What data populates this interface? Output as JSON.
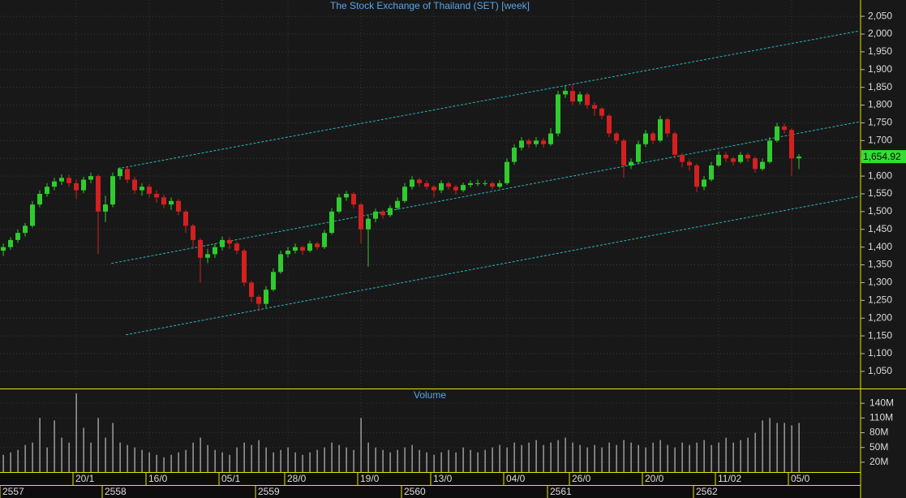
{
  "chart_data": [
    {
      "type": "candlestick",
      "title": "The Stock Exchange of Thailand (SET) [week]",
      "categories": [
        null,
        null,
        null,
        null,
        null,
        null,
        null,
        null,
        null,
        null,
        "20/1",
        null,
        null,
        null,
        null,
        null,
        null,
        null,
        null,
        null,
        "16/0",
        null,
        null,
        null,
        null,
        null,
        null,
        null,
        null,
        null,
        "05/1",
        null,
        null,
        null,
        null,
        null,
        null,
        null,
        null,
        "28/0",
        null,
        null,
        null,
        null,
        null,
        null,
        null,
        null,
        null,
        "19/0",
        null,
        null,
        null,
        null,
        null,
        null,
        null,
        null,
        null,
        "13/0",
        null,
        null,
        null,
        null,
        null,
        null,
        null,
        null,
        null,
        "04/0",
        null,
        null,
        null,
        null,
        null,
        null,
        null,
        null,
        "26/0",
        null,
        null,
        null,
        null,
        null,
        null,
        null,
        null,
        null,
        "20/0",
        null,
        null,
        null,
        null,
        null,
        null,
        null,
        null,
        null,
        "11/02",
        null,
        null,
        null,
        null,
        null,
        null,
        null,
        null,
        null,
        "05/0",
        null
      ],
      "years": [
        "2557",
        null,
        null,
        null,
        null,
        null,
        null,
        null,
        null,
        null,
        null,
        null,
        null,
        null,
        "2558",
        null,
        null,
        null,
        null,
        null,
        null,
        null,
        null,
        null,
        null,
        null,
        null,
        null,
        null,
        null,
        null,
        null,
        null,
        null,
        null,
        "2559",
        null,
        null,
        null,
        null,
        null,
        null,
        null,
        null,
        null,
        null,
        null,
        null,
        null,
        null,
        null,
        null,
        null,
        null,
        null,
        "2560",
        null,
        null,
        null,
        null,
        null,
        null,
        null,
        null,
        null,
        null,
        null,
        null,
        null,
        null,
        null,
        null,
        null,
        null,
        null,
        "2561",
        null,
        null,
        null,
        null,
        null,
        null,
        null,
        null,
        null,
        null,
        null,
        null,
        null,
        null,
        null,
        null,
        null,
        null,
        null,
        "2562",
        null,
        null,
        null,
        null,
        null,
        null,
        null,
        null,
        null,
        null,
        null,
        null,
        null,
        null
      ],
      "open": [
        1390,
        1400,
        1420,
        1440,
        1460,
        1520,
        1550,
        1570,
        1585,
        1595,
        1580,
        1560,
        1590,
        1600,
        1500,
        1520,
        1600,
        1620,
        1590,
        1560,
        1570,
        1550,
        1540,
        1520,
        1530,
        1500,
        1460,
        1420,
        1370,
        1380,
        1400,
        1420,
        1410,
        1390,
        1300,
        1260,
        1240,
        1280,
        1330,
        1380,
        1390,
        1400,
        1390,
        1410,
        1400,
        1440,
        1500,
        1540,
        1550,
        1520,
        1450,
        1480,
        1500,
        1490,
        1510,
        1530,
        1570,
        1590,
        1580,
        1570,
        1560,
        1580,
        1570,
        1560,
        1575,
        1580,
        1580,
        1580,
        1570,
        1580,
        1640,
        1680,
        1700,
        1690,
        1700,
        1690,
        1720,
        1830,
        1840,
        1810,
        1830,
        1800,
        1790,
        1770,
        1720,
        1700,
        1630,
        1640,
        1690,
        1720,
        1700,
        1760,
        1720,
        1660,
        1640,
        1630,
        1570,
        1590,
        1630,
        1660,
        1650,
        1640,
        1660,
        1650,
        1620,
        1640,
        1700,
        1740,
        1730,
        1650
      ],
      "high": [
        1410,
        1428,
        1450,
        1468,
        1530,
        1560,
        1580,
        1595,
        1605,
        1604,
        1590,
        1598,
        1610,
        1605,
        1545,
        1610,
        1625,
        1625,
        1598,
        1580,
        1578,
        1560,
        1548,
        1540,
        1535,
        1505,
        1465,
        1425,
        1395,
        1410,
        1430,
        1428,
        1415,
        1395,
        1305,
        1265,
        1290,
        1340,
        1390,
        1400,
        1410,
        1405,
        1418,
        1415,
        1448,
        1510,
        1550,
        1558,
        1555,
        1525,
        1490,
        1508,
        1505,
        1518,
        1540,
        1580,
        1600,
        1595,
        1588,
        1575,
        1588,
        1585,
        1575,
        1582,
        1588,
        1590,
        1588,
        1585,
        1588,
        1650,
        1690,
        1710,
        1705,
        1710,
        1708,
        1735,
        1840,
        1855,
        1860,
        1838,
        1835,
        1808,
        1795,
        1775,
        1725,
        1705,
        1650,
        1700,
        1730,
        1725,
        1770,
        1765,
        1725,
        1665,
        1648,
        1635,
        1600,
        1640,
        1670,
        1668,
        1655,
        1668,
        1665,
        1655,
        1650,
        1710,
        1750,
        1748,
        1735,
        1662
      ],
      "low": [
        1375,
        1392,
        1412,
        1430,
        1455,
        1512,
        1542,
        1560,
        1575,
        1570,
        1535,
        1552,
        1580,
        1380,
        1470,
        1512,
        1590,
        1580,
        1550,
        1545,
        1540,
        1525,
        1510,
        1505,
        1490,
        1440,
        1400,
        1300,
        1355,
        1370,
        1390,
        1395,
        1380,
        1290,
        1245,
        1220,
        1230,
        1275,
        1325,
        1370,
        1382,
        1378,
        1385,
        1392,
        1395,
        1435,
        1495,
        1530,
        1510,
        1410,
        1345,
        1470,
        1480,
        1485,
        1505,
        1525,
        1562,
        1570,
        1562,
        1540,
        1552,
        1562,
        1548,
        1555,
        1568,
        1572,
        1572,
        1562,
        1565,
        1575,
        1632,
        1672,
        1680,
        1682,
        1680,
        1685,
        1712,
        1820,
        1800,
        1802,
        1790,
        1770,
        1760,
        1710,
        1690,
        1595,
        1620,
        1635,
        1682,
        1690,
        1695,
        1710,
        1650,
        1625,
        1615,
        1555,
        1560,
        1585,
        1625,
        1640,
        1630,
        1635,
        1640,
        1610,
        1615,
        1635,
        1695,
        1720,
        1600,
        1620
      ],
      "close": [
        1400,
        1420,
        1440,
        1460,
        1520,
        1550,
        1570,
        1585,
        1595,
        1580,
        1560,
        1590,
        1600,
        1500,
        1520,
        1600,
        1620,
        1590,
        1560,
        1570,
        1550,
        1540,
        1520,
        1530,
        1500,
        1460,
        1420,
        1370,
        1380,
        1400,
        1420,
        1410,
        1390,
        1300,
        1260,
        1240,
        1280,
        1330,
        1380,
        1390,
        1400,
        1390,
        1410,
        1400,
        1440,
        1500,
        1540,
        1550,
        1520,
        1450,
        1480,
        1500,
        1490,
        1510,
        1530,
        1570,
        1590,
        1580,
        1570,
        1560,
        1580,
        1570,
        1560,
        1575,
        1580,
        1580,
        1580,
        1570,
        1580,
        1640,
        1680,
        1700,
        1690,
        1700,
        1690,
        1720,
        1830,
        1840,
        1810,
        1830,
        1800,
        1790,
        1770,
        1720,
        1700,
        1630,
        1640,
        1690,
        1720,
        1700,
        1760,
        1720,
        1660,
        1640,
        1630,
        1570,
        1590,
        1630,
        1660,
        1650,
        1640,
        1660,
        1650,
        1620,
        1640,
        1700,
        1740,
        1730,
        1650,
        1654.92
      ],
      "up_color": "#2ecc2e",
      "down_color": "#d42020",
      "ylim": [
        1004,
        2096
      ],
      "yticks": [
        {
          "value": 1050,
          "label": "1,050"
        },
        {
          "value": 1100,
          "label": "1,100"
        },
        {
          "value": 1150,
          "label": "1,150"
        },
        {
          "value": 1200,
          "label": "1,200"
        },
        {
          "value": 1250,
          "label": "1,250"
        },
        {
          "value": 1300,
          "label": "1,300"
        },
        {
          "value": 1350,
          "label": "1,350"
        },
        {
          "value": 1400,
          "label": "1,400"
        },
        {
          "value": 1450,
          "label": "1,450"
        },
        {
          "value": 1500,
          "label": "1,500"
        },
        {
          "value": 1550,
          "label": "1,550"
        },
        {
          "value": 1600,
          "label": "1,600"
        },
        {
          "value": 1650,
          "label": "1,650"
        },
        {
          "value": 1700,
          "label": "1,700"
        },
        {
          "value": 1750,
          "label": "1,750"
        },
        {
          "value": 1800,
          "label": "1,800"
        },
        {
          "value": 1850,
          "label": "1,850"
        },
        {
          "value": 1900,
          "label": "1,900"
        },
        {
          "value": 1950,
          "label": "1,950"
        },
        {
          "value": 2000,
          "label": "2,000"
        },
        {
          "value": 2050,
          "label": "2,050"
        }
      ],
      "grid": true,
      "trendlines": [
        {
          "x": [
            15.7,
            117.3
          ],
          "values": [
            1621,
            2009
          ],
          "color": "#2bb5b5"
        },
        {
          "x": [
            14.8,
            117.3
          ],
          "values": [
            1354,
            1753
          ],
          "color": "#2bb5b5"
        },
        {
          "x": [
            16.8,
            117.3
          ],
          "values": [
            1153,
            1543
          ],
          "color": "#2bb5b5"
        }
      ],
      "last_price": {
        "value": 1654.92,
        "label": "1,654.92"
      },
      "last_color": "#33dd33"
    },
    {
      "type": "bar",
      "title": "Volume",
      "color": "#bdbdbd",
      "values": [
        35,
        40,
        45,
        55,
        60,
        110,
        50,
        105,
        70,
        60,
        160,
        90,
        60,
        110,
        70,
        100,
        60,
        55,
        50,
        45,
        40,
        35,
        30,
        35,
        40,
        45,
        60,
        70,
        55,
        45,
        40,
        35,
        50,
        60,
        55,
        65,
        50,
        40,
        45,
        50,
        40,
        35,
        40,
        45,
        50,
        60,
        55,
        50,
        45,
        110,
        60,
        50,
        45,
        40,
        45,
        50,
        55,
        45,
        40,
        35,
        40,
        45,
        40,
        50,
        45,
        40,
        45,
        50,
        55,
        50,
        60,
        55,
        60,
        65,
        55,
        60,
        65,
        70,
        60,
        55,
        50,
        55,
        50,
        60,
        55,
        65,
        60,
        55,
        50,
        60,
        65,
        55,
        50,
        60,
        55,
        60,
        65,
        55,
        60,
        70,
        60,
        65,
        70,
        80,
        105,
        110,
        100,
        100,
        95,
        100
      ],
      "ylim": [
        0,
        165
      ],
      "yticks": [
        {
          "value": 20,
          "label": "20M"
        },
        {
          "value": 50,
          "label": "50M"
        },
        {
          "value": 80,
          "label": "80M"
        },
        {
          "value": 110,
          "label": "110M"
        },
        {
          "value": 140,
          "label": "140M"
        }
      ]
    }
  ]
}
